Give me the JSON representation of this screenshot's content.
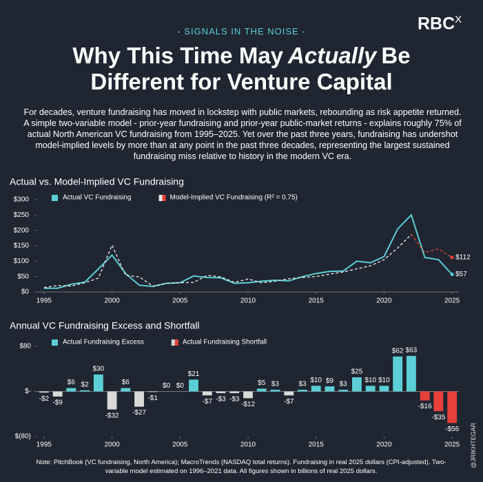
{
  "header": {
    "tagline": "- SIGNALS IN THE NOISE -",
    "logo": "RBC",
    "logo_mark": "X",
    "title": [
      "Why This Time May",
      "Actually",
      "Be",
      "Different for Venture Capital"
    ]
  },
  "intro": "For decades, venture fundraising has moved in lockstep with public markets, rebounding as risk appetite returned. A simple two-variable model - prior-year fundraising and prior-year public-market returns - explains roughly 75% of actual North American VC fundraising from 1995–2025. Yet over the past three years, fundraising has undershot model-implied levels by more than at any point in the past three decades, representing the largest sustained fundraising miss relative to history in the modern VC era.",
  "chart_data": [
    {
      "type": "line",
      "title": "Actual vs. Model-Implied VC Fundraising",
      "x": [
        1995,
        1996,
        1997,
        1998,
        1999,
        2000,
        2001,
        2002,
        2003,
        2004,
        2005,
        2006,
        2007,
        2008,
        2009,
        2010,
        2011,
        2012,
        2013,
        2014,
        2015,
        2016,
        2017,
        2018,
        2019,
        2020,
        2021,
        2022,
        2023,
        2024,
        2025
      ],
      "series": [
        {
          "name": "Actual VC Fundraising",
          "color": "#5ccfd6",
          "values": [
            12,
            12,
            25,
            32,
            75,
            120,
            60,
            22,
            18,
            28,
            30,
            52,
            47,
            46,
            28,
            30,
            35,
            38,
            36,
            50,
            60,
            67,
            68,
            100,
            95,
            115,
            205,
            250,
            112,
            105,
            57
          ],
          "value_labels": [
            null,
            null,
            null,
            null,
            null,
            null,
            null,
            null,
            null,
            null,
            null,
            null,
            null,
            null,
            null,
            null,
            null,
            null,
            null,
            null,
            null,
            null,
            null,
            null,
            null,
            null,
            null,
            null,
            null,
            null,
            "$57"
          ]
        },
        {
          "name": "Model-Implied VC Fundraising (R² = 0.75)",
          "color": "#e6e6e6",
          "dash": true,
          "highlight_color": "#e8413c",
          "highlight_from": 2022,
          "values": [
            14,
            21,
            19,
            30,
            45,
            152,
            54,
            49,
            19,
            28,
            30,
            31,
            54,
            49,
            31,
            42,
            30,
            35,
            43,
            47,
            50,
            58,
            65,
            75,
            85,
            105,
            143,
            187,
            128,
            140,
            112
          ],
          "value_labels": [
            null,
            null,
            null,
            null,
            null,
            null,
            null,
            null,
            null,
            null,
            null,
            null,
            null,
            null,
            null,
            null,
            null,
            null,
            null,
            null,
            null,
            null,
            null,
            null,
            null,
            null,
            null,
            null,
            null,
            null,
            "$112"
          ]
        }
      ],
      "xlim": [
        1994.5,
        2025.5
      ],
      "xticks": [
        1995,
        2000,
        2005,
        2010,
        2015,
        2020,
        2025
      ],
      "ylim": [
        0,
        300
      ],
      "yticks": [
        {
          "value": 0,
          "label": "$0"
        },
        {
          "value": 50,
          "label": "$50"
        },
        {
          "value": 100,
          "label": "$100"
        },
        {
          "value": 150,
          "label": "$150"
        },
        {
          "value": 200,
          "label": "$200"
        },
        {
          "value": 250,
          "label": "$250"
        },
        {
          "value": 300,
          "label": "$300"
        }
      ]
    },
    {
      "type": "bar",
      "title": "Annual VC Fundraising Excess and Shortfall",
      "legend": [
        "Actual Fundraising Excess",
        "Actual Fundraising Shortfall"
      ],
      "colors": {
        "excess": "#5ccfd6",
        "shortfall": "#d9d9d9",
        "recent_shortfall": "#e8413c"
      },
      "highlight_from": 2023,
      "x": [
        1995,
        1996,
        1997,
        1998,
        1999,
        2000,
        2001,
        2002,
        2003,
        2004,
        2005,
        2006,
        2007,
        2008,
        2009,
        2010,
        2011,
        2012,
        2013,
        2014,
        2015,
        2016,
        2017,
        2018,
        2019,
        2020,
        2021,
        2022,
        2023,
        2024,
        2025
      ],
      "values": [
        -2,
        -9,
        6,
        2,
        30,
        -32,
        6,
        -27,
        -1,
        0,
        0,
        21,
        -7,
        -3,
        -3,
        -12,
        5,
        3,
        -7,
        3,
        10,
        9,
        3,
        25,
        10,
        10,
        62,
        63,
        -16,
        -35,
        -56
      ],
      "value_labels": [
        "-$2",
        "-$9",
        "$6",
        "$2",
        "$30",
        "-$32",
        "$6",
        "-$27",
        "-$1",
        "$0",
        "$0",
        "$21",
        "-$7",
        "-$3",
        "-$3",
        "-$12",
        "$5",
        "$3",
        "-$7",
        "$3",
        "$10",
        "$9",
        "$3",
        "$25",
        "$10",
        "$10",
        "$62",
        "$63",
        "-$16",
        "-$35",
        "-$56"
      ],
      "xlim": [
        1994.5,
        2025.5
      ],
      "xticks": [
        1995,
        2000,
        2005,
        2010,
        2015,
        2020,
        2025
      ],
      "ylim": [
        -80,
        80
      ],
      "yticks": [
        {
          "value": -80,
          "label": "$(80)"
        },
        {
          "value": 0,
          "label": "$-"
        },
        {
          "value": 80,
          "label": "$80"
        }
      ]
    }
  ],
  "footnote": "Note: PitchBook (VC fundraising, North America); MacroTrends (NASDAQ total returns). Fundraising in real 2025 dollars (CPI-adjusted). Two-variable model estimated on 1996–2021 data. All figures shown in billions of real 2025 dollars.",
  "credit": "@JRIKHTEGAR"
}
